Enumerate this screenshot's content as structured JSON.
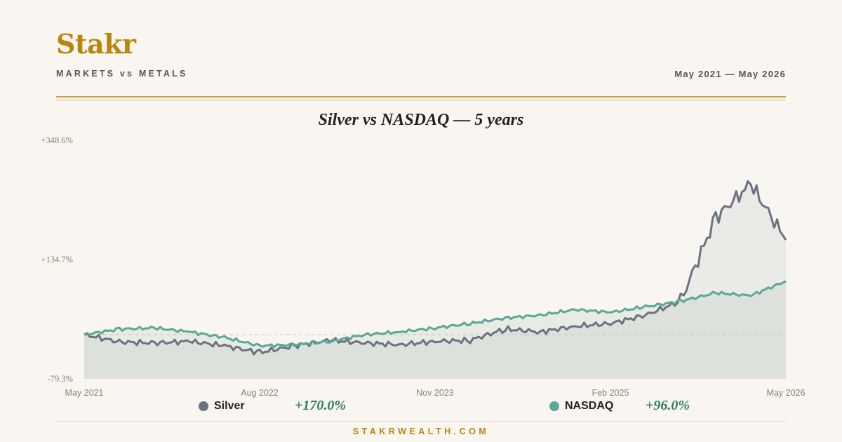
{
  "header": {
    "brand": "Stakr",
    "subtitle": "MARKETS vs METALS",
    "date_range": "May 2021 — May 2026"
  },
  "footer": {
    "site": "STAKRWEALTH.COM"
  },
  "colors": {
    "silver": "#6b7280",
    "nasdaq": "#5aa896",
    "accent": "#b8860b",
    "positive": "#2e7d5b"
  },
  "legend": [
    {
      "name": "Silver",
      "value": "+170.0%",
      "color": "#6b7280"
    },
    {
      "name": "NASDAQ",
      "value": "+96.0%",
      "color": "#5aa896"
    }
  ],
  "chart_data": {
    "type": "line",
    "title": "Silver vs NASDAQ — 5 years",
    "x_ticks": [
      "May 2021",
      "Aug 2022",
      "Nov 2023",
      "Feb 2025",
      "May 2026"
    ],
    "y_ticks": [
      "+348.6%",
      "+134.7%",
      "-79.3%"
    ],
    "ylim": [
      -79.3,
      348.6
    ],
    "baseline": 0,
    "baseline_dashed": true,
    "x": [
      "2021-05",
      "2021-08",
      "2021-11",
      "2022-02",
      "2022-05",
      "2022-08",
      "2022-11",
      "2023-02",
      "2023-05",
      "2023-08",
      "2023-11",
      "2024-02",
      "2024-05",
      "2024-08",
      "2024-11",
      "2025-02",
      "2025-05",
      "2025-08",
      "2025-11",
      "2026-02",
      "2026-05"
    ],
    "series": [
      {
        "name": "Silver",
        "values": [
          0,
          -13,
          -15,
          -12,
          -20,
          -32,
          -20,
          -10,
          -15,
          -18,
          -12,
          -10,
          10,
          5,
          15,
          20,
          35,
          60,
          210,
          270,
          170
        ]
      },
      {
        "name": "NASDAQ",
        "values": [
          0,
          10,
          12,
          5,
          -5,
          -20,
          -18,
          -12,
          0,
          5,
          12,
          20,
          30,
          35,
          45,
          40,
          50,
          60,
          75,
          70,
          96
        ]
      }
    ]
  }
}
